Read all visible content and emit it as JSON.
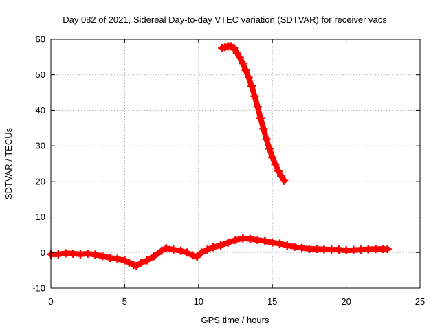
{
  "chart_data": {
    "type": "scatter",
    "title": "Day 082 of 2021, Sidereal Day-to-day VTEC variation (SDTVAR) for receiver vacs",
    "xlabel": "GPS time / hours",
    "ylabel": "SDTVAR / TECUs",
    "xlim": [
      0,
      25
    ],
    "ylim": [
      -10,
      60
    ],
    "xticks": [
      0,
      5,
      10,
      15,
      20,
      25
    ],
    "yticks": [
      -10,
      0,
      10,
      20,
      30,
      40,
      50,
      60
    ],
    "xtick_labels": [
      "0",
      "5",
      "10",
      "15",
      "20",
      "25"
    ],
    "ytick_labels": [
      "-10",
      "0",
      "10",
      "20",
      "30",
      "40",
      "50",
      "60"
    ],
    "grid": true,
    "marker": "plus",
    "series": [
      {
        "name": "main",
        "color": "#ff0000",
        "x": [
          0.0,
          0.5,
          1.0,
          1.5,
          2.0,
          2.5,
          3.0,
          3.5,
          4.0,
          4.5,
          5.0,
          5.3,
          5.6,
          5.8,
          6.1,
          6.5,
          7.0,
          7.5,
          7.8,
          8.3,
          8.8,
          9.2,
          9.6,
          9.9,
          10.2,
          10.6,
          11.0,
          11.5,
          12.0,
          12.5,
          13.0,
          13.5,
          14.0,
          14.5,
          15.0,
          15.5,
          16.0,
          16.5,
          17.0,
          17.5,
          18.0,
          18.5,
          19.0,
          19.5,
          20.0,
          20.5,
          21.0,
          21.5,
          22.0,
          22.5,
          22.8
        ],
        "y": [
          -0.5,
          -0.5,
          -0.2,
          -0.3,
          -0.5,
          -0.3,
          -0.6,
          -1.0,
          -1.5,
          -1.8,
          -2.2,
          -2.8,
          -3.5,
          -3.8,
          -3.0,
          -2.2,
          -1.0,
          0.5,
          1.2,
          0.8,
          0.5,
          0.0,
          -0.8,
          -1.2,
          0.0,
          0.8,
          1.5,
          2.0,
          2.8,
          3.5,
          4.0,
          3.8,
          3.5,
          3.2,
          2.8,
          2.5,
          2.0,
          1.6,
          1.3,
          1.0,
          1.0,
          0.9,
          0.8,
          0.8,
          0.6,
          0.7,
          0.8,
          0.9,
          1.0,
          1.0,
          1.0
        ]
      },
      {
        "name": "upper arc",
        "color": "#ff0000",
        "x": [
          11.6,
          11.8,
          12.0,
          12.2,
          12.4,
          12.6,
          12.8,
          13.0,
          13.2,
          13.4,
          13.6,
          13.8,
          14.0,
          14.2,
          14.4,
          14.6,
          14.8,
          15.0,
          15.2,
          15.4,
          15.6,
          15.8
        ],
        "y": [
          57.5,
          57.8,
          58.0,
          58.0,
          57.5,
          56.2,
          54.8,
          53.2,
          51.3,
          49.2,
          46.8,
          44.0,
          41.0,
          37.8,
          34.8,
          31.8,
          29.2,
          26.8,
          24.8,
          23.0,
          21.5,
          20.2
        ]
      }
    ]
  }
}
